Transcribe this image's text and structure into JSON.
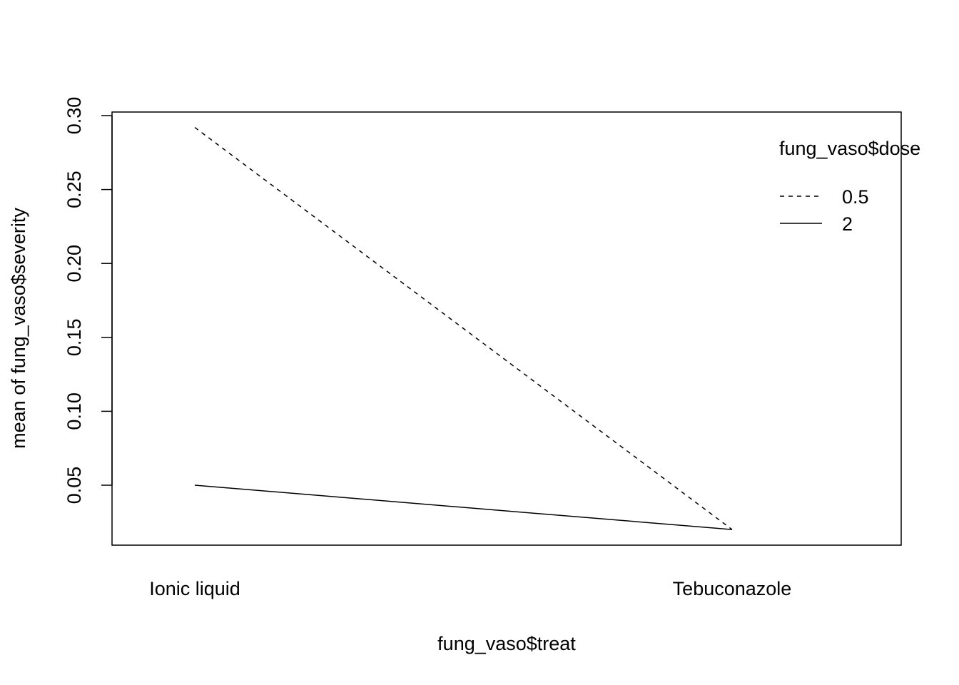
{
  "chart_data": {
    "type": "line",
    "xlabel": "fung_vaso$treat",
    "ylabel": "mean of  fung_vaso$severity",
    "categories": [
      "Ionic liquid",
      "Tebuconazole"
    ],
    "ylim": [
      0.01,
      0.3
    ],
    "yticks": [
      "0.05",
      "0.10",
      "0.15",
      "0.20",
      "0.25",
      "0.30"
    ],
    "grid": false,
    "legend": {
      "title": "fung_vaso$dose",
      "placement": "top-right"
    },
    "series": [
      {
        "name": "0.5",
        "line_style": "dashed",
        "values": [
          0.292,
          0.02
        ]
      },
      {
        "name": "2",
        "line_style": "solid",
        "values": [
          0.05,
          0.02
        ]
      }
    ]
  }
}
